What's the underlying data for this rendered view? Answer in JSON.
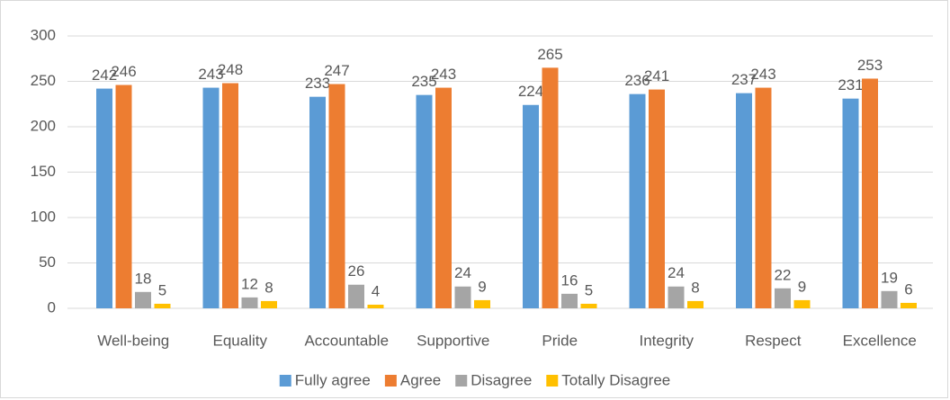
{
  "chart_data": {
    "type": "bar",
    "categories": [
      "Well-being",
      "Equality",
      "Accountable",
      "Supportive",
      "Pride",
      "Integrity",
      "Respect",
      "Excellence"
    ],
    "series": [
      {
        "name": "Fully agree",
        "color": "#5b9bd5",
        "values": [
          242,
          243,
          233,
          235,
          224,
          236,
          237,
          231
        ]
      },
      {
        "name": "Agree",
        "color": "#ed7d31",
        "values": [
          246,
          248,
          247,
          243,
          265,
          241,
          243,
          253
        ]
      },
      {
        "name": "Disagree",
        "color": "#a5a5a5",
        "values": [
          18,
          12,
          26,
          24,
          16,
          24,
          22,
          19
        ]
      },
      {
        "name": "Totally Disagree",
        "color": "#ffc000",
        "values": [
          5,
          8,
          4,
          9,
          5,
          8,
          9,
          6
        ]
      }
    ],
    "ylim": [
      0,
      300
    ],
    "yticks": [
      0,
      50,
      100,
      150,
      200,
      250,
      300
    ],
    "grid": true,
    "legend": "bottom"
  }
}
